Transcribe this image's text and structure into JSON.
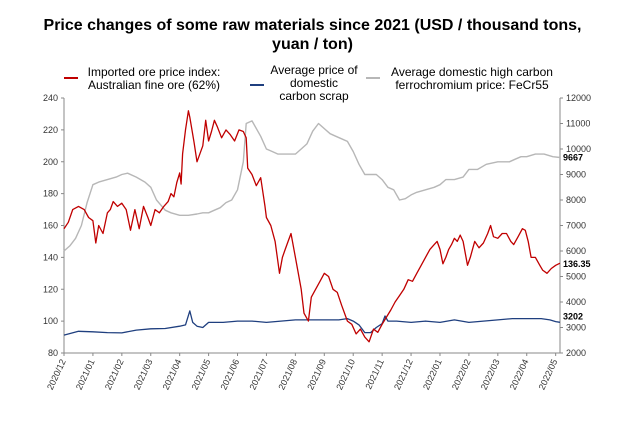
{
  "chart_data": {
    "type": "line",
    "title": "Price changes of some raw materials since 2021 (USD / thousand tons, yuan / ton)",
    "title_lines": [
      "Price changes of some raw materials since 2021 (USD / thousand tons,",
      "yuan / ton)"
    ],
    "x_categories": [
      "2020/12",
      "2021/01",
      "2021/02",
      "2021/03",
      "2021/04",
      "2021/05",
      "2021/06",
      "2021/07",
      "2021/08",
      "2021/09",
      "2021/10",
      "2021/11",
      "2021/12",
      "2022/01",
      "2022/02",
      "2022/03",
      "2022/04",
      "2022/05"
    ],
    "y_left": {
      "min": 80,
      "max": 240,
      "ticks": [
        "80",
        "100",
        "120",
        "140",
        "160",
        "180",
        "200",
        "220",
        "240"
      ]
    },
    "y_right": {
      "min": 2000,
      "max": 12000,
      "ticks": [
        "2000",
        "3000",
        "4000",
        "5000",
        "6000",
        "7000",
        "8000",
        "9000",
        "10000",
        "11000",
        "12000"
      ]
    },
    "series": [
      {
        "name": "Imported ore price index: Australian fine ore (62%)",
        "legend_lines": [
          "Imported ore price index:",
          "Australian fine ore (62%)"
        ],
        "axis": "left",
        "color": "#c00000",
        "points": [
          [
            0,
            158
          ],
          [
            0.15,
            162
          ],
          [
            0.3,
            170
          ],
          [
            0.5,
            172
          ],
          [
            0.7,
            170
          ],
          [
            0.85,
            165
          ],
          [
            1.0,
            163
          ],
          [
            1.1,
            149
          ],
          [
            1.2,
            160
          ],
          [
            1.35,
            155
          ],
          [
            1.5,
            168
          ],
          [
            1.6,
            170
          ],
          [
            1.7,
            175
          ],
          [
            1.85,
            172
          ],
          [
            2.0,
            174
          ],
          [
            2.15,
            170
          ],
          [
            2.3,
            157
          ],
          [
            2.45,
            170
          ],
          [
            2.6,
            158
          ],
          [
            2.75,
            172
          ],
          [
            2.9,
            165
          ],
          [
            3.0,
            160
          ],
          [
            3.15,
            170
          ],
          [
            3.3,
            168
          ],
          [
            3.45,
            172
          ],
          [
            3.6,
            175
          ],
          [
            3.7,
            180
          ],
          [
            3.8,
            178
          ],
          [
            3.9,
            187
          ],
          [
            4.0,
            193
          ],
          [
            4.05,
            186
          ],
          [
            4.1,
            205
          ],
          [
            4.2,
            220
          ],
          [
            4.3,
            232
          ],
          [
            4.35,
            228
          ],
          [
            4.5,
            212
          ],
          [
            4.6,
            200
          ],
          [
            4.7,
            205
          ],
          [
            4.8,
            210
          ],
          [
            4.9,
            226
          ],
          [
            5.0,
            213
          ],
          [
            5.1,
            219
          ],
          [
            5.2,
            226
          ],
          [
            5.3,
            222
          ],
          [
            5.45,
            215
          ],
          [
            5.6,
            220
          ],
          [
            5.75,
            217
          ],
          [
            5.9,
            213
          ],
          [
            6.05,
            220
          ],
          [
            6.2,
            219
          ],
          [
            6.3,
            215
          ],
          [
            6.35,
            196
          ],
          [
            6.5,
            192
          ],
          [
            6.65,
            185
          ],
          [
            6.8,
            190
          ],
          [
            6.95,
            172
          ],
          [
            7.0,
            165
          ],
          [
            7.15,
            160
          ],
          [
            7.3,
            150
          ],
          [
            7.45,
            130
          ],
          [
            7.55,
            140
          ],
          [
            7.65,
            145
          ],
          [
            7.75,
            150
          ],
          [
            7.85,
            155
          ],
          [
            8.0,
            140
          ],
          [
            8.1,
            130
          ],
          [
            8.2,
            120
          ],
          [
            8.3,
            105
          ],
          [
            8.45,
            100
          ],
          [
            8.55,
            115
          ],
          [
            8.7,
            120
          ],
          [
            8.85,
            125
          ],
          [
            9.0,
            130
          ],
          [
            9.15,
            128
          ],
          [
            9.3,
            120
          ],
          [
            9.45,
            118
          ],
          [
            9.6,
            110
          ],
          [
            9.8,
            100
          ],
          [
            9.95,
            98
          ],
          [
            10.1,
            92
          ],
          [
            10.25,
            95
          ],
          [
            10.4,
            90
          ],
          [
            10.55,
            87
          ],
          [
            10.7,
            95
          ],
          [
            10.85,
            93
          ],
          [
            11.0,
            98
          ],
          [
            11.1,
            101
          ],
          [
            11.3,
            107
          ],
          [
            11.45,
            112
          ],
          [
            11.6,
            116
          ],
          [
            11.75,
            120
          ],
          [
            11.9,
            126
          ],
          [
            12.05,
            125
          ],
          [
            12.2,
            130
          ],
          [
            12.35,
            135
          ],
          [
            12.5,
            140
          ],
          [
            12.65,
            145
          ],
          [
            12.8,
            148
          ],
          [
            12.9,
            150
          ],
          [
            13.0,
            145
          ],
          [
            13.1,
            136
          ],
          [
            13.2,
            140
          ],
          [
            13.3,
            145
          ],
          [
            13.4,
            148
          ],
          [
            13.5,
            152
          ],
          [
            13.6,
            150
          ],
          [
            13.7,
            154
          ],
          [
            13.8,
            150
          ],
          [
            13.95,
            135
          ],
          [
            14.05,
            140
          ],
          [
            14.2,
            150
          ],
          [
            14.35,
            146
          ],
          [
            14.5,
            149
          ],
          [
            14.65,
            155
          ],
          [
            14.75,
            160
          ],
          [
            14.85,
            153
          ],
          [
            15.0,
            152
          ],
          [
            15.15,
            155
          ],
          [
            15.3,
            155
          ],
          [
            15.45,
            150
          ],
          [
            15.55,
            148
          ],
          [
            15.7,
            153
          ],
          [
            15.85,
            158
          ],
          [
            15.95,
            157
          ],
          [
            16.05,
            150
          ],
          [
            16.15,
            140
          ],
          [
            16.3,
            140
          ],
          [
            16.45,
            135
          ],
          [
            16.55,
            132
          ],
          [
            16.7,
            130
          ],
          [
            16.85,
            133
          ],
          [
            17.0,
            135
          ],
          [
            17.15,
            136.35
          ]
        ]
      },
      {
        "name": "Average price of domestic carbon scrap",
        "legend_lines": [
          "Average price of",
          "domestic",
          "carbon scrap"
        ],
        "axis": "right",
        "color": "#1f3f7f",
        "points": [
          [
            0,
            2700
          ],
          [
            0.5,
            2850
          ],
          [
            1.0,
            2830
          ],
          [
            1.5,
            2800
          ],
          [
            2.0,
            2790
          ],
          [
            2.5,
            2900
          ],
          [
            3.0,
            2950
          ],
          [
            3.5,
            2960
          ],
          [
            4.0,
            3050
          ],
          [
            4.2,
            3100
          ],
          [
            4.35,
            3650
          ],
          [
            4.45,
            3200
          ],
          [
            4.6,
            3050
          ],
          [
            4.8,
            3000
          ],
          [
            5.0,
            3200
          ],
          [
            5.5,
            3200
          ],
          [
            6.0,
            3250
          ],
          [
            6.5,
            3250
          ],
          [
            7.0,
            3200
          ],
          [
            7.5,
            3250
          ],
          [
            8.0,
            3300
          ],
          [
            8.5,
            3300
          ],
          [
            9.0,
            3300
          ],
          [
            9.5,
            3300
          ],
          [
            9.8,
            3350
          ],
          [
            10.0,
            3250
          ],
          [
            10.2,
            3100
          ],
          [
            10.4,
            2800
          ],
          [
            10.6,
            2800
          ],
          [
            10.8,
            3000
          ],
          [
            11.0,
            3150
          ],
          [
            11.1,
            3450
          ],
          [
            11.2,
            3250
          ],
          [
            11.5,
            3250
          ],
          [
            12.0,
            3200
          ],
          [
            12.5,
            3250
          ],
          [
            13.0,
            3200
          ],
          [
            13.5,
            3300
          ],
          [
            14.0,
            3200
          ],
          [
            14.5,
            3250
          ],
          [
            15.0,
            3300
          ],
          [
            15.5,
            3350
          ],
          [
            16.0,
            3350
          ],
          [
            16.5,
            3350
          ],
          [
            16.8,
            3300
          ],
          [
            17.0,
            3230
          ],
          [
            17.15,
            3202
          ]
        ]
      },
      {
        "name": "Average domestic high carbon ferrochromium price: FeCr55",
        "legend_lines": [
          "Average domestic high carbon",
          "ferrochromium price: FeCr55"
        ],
        "axis": "right",
        "color": "#b7b7b7",
        "points": [
          [
            0,
            6000
          ],
          [
            0.2,
            6200
          ],
          [
            0.4,
            6500
          ],
          [
            0.6,
            7000
          ],
          [
            0.8,
            7900
          ],
          [
            1.0,
            8600
          ],
          [
            1.2,
            8700
          ],
          [
            1.5,
            8800
          ],
          [
            1.8,
            8900
          ],
          [
            2.0,
            9000
          ],
          [
            2.2,
            9050
          ],
          [
            2.5,
            8900
          ],
          [
            2.8,
            8700
          ],
          [
            3.0,
            8500
          ],
          [
            3.2,
            8000
          ],
          [
            3.5,
            7600
          ],
          [
            3.7,
            7500
          ],
          [
            4.0,
            7400
          ],
          [
            4.3,
            7400
          ],
          [
            4.6,
            7450
          ],
          [
            4.8,
            7500
          ],
          [
            5.0,
            7500
          ],
          [
            5.2,
            7600
          ],
          [
            5.4,
            7700
          ],
          [
            5.6,
            7900
          ],
          [
            5.8,
            8000
          ],
          [
            6.0,
            8400
          ],
          [
            6.2,
            9500
          ],
          [
            6.3,
            11000
          ],
          [
            6.5,
            11100
          ],
          [
            6.8,
            10500
          ],
          [
            7.0,
            10000
          ],
          [
            7.2,
            9900
          ],
          [
            7.4,
            9800
          ],
          [
            7.6,
            9800
          ],
          [
            7.8,
            9800
          ],
          [
            8.0,
            9800
          ],
          [
            8.2,
            10000
          ],
          [
            8.4,
            10200
          ],
          [
            8.6,
            10700
          ],
          [
            8.8,
            11000
          ],
          [
            9.0,
            10800
          ],
          [
            9.2,
            10600
          ],
          [
            9.4,
            10500
          ],
          [
            9.6,
            10400
          ],
          [
            9.8,
            10300
          ],
          [
            10.0,
            9900
          ],
          [
            10.2,
            9400
          ],
          [
            10.4,
            9000
          ],
          [
            10.6,
            9000
          ],
          [
            10.8,
            9000
          ],
          [
            11.0,
            8800
          ],
          [
            11.2,
            8500
          ],
          [
            11.4,
            8400
          ],
          [
            11.6,
            8000
          ],
          [
            11.8,
            8050
          ],
          [
            12.0,
            8200
          ],
          [
            12.2,
            8300
          ],
          [
            12.5,
            8400
          ],
          [
            12.8,
            8500
          ],
          [
            13.0,
            8600
          ],
          [
            13.2,
            8800
          ],
          [
            13.5,
            8800
          ],
          [
            13.8,
            8900
          ],
          [
            14.0,
            9200
          ],
          [
            14.3,
            9200
          ],
          [
            14.6,
            9400
          ],
          [
            15.0,
            9500
          ],
          [
            15.4,
            9500
          ],
          [
            15.6,
            9600
          ],
          [
            15.8,
            9700
          ],
          [
            16.0,
            9700
          ],
          [
            16.3,
            9800
          ],
          [
            16.6,
            9800
          ],
          [
            16.9,
            9700
          ],
          [
            17.15,
            9667
          ]
        ]
      }
    ],
    "end_labels": {
      "ore": "136.35",
      "scrap": "3202",
      "ferro": "9667"
    }
  }
}
